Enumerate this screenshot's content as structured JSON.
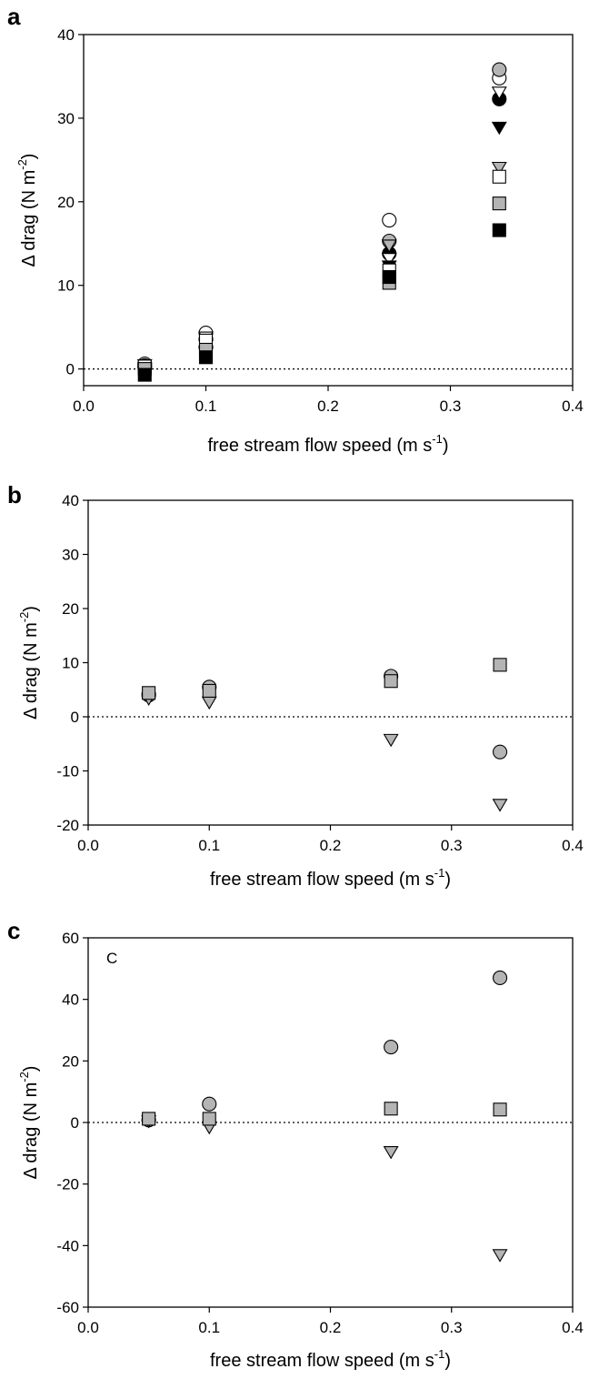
{
  "chart_data": [
    {
      "type": "scatter",
      "panel_label": "a",
      "inset_label": "",
      "xlabel": "free stream flow speed (m s",
      "xlabel_sup": "-1",
      "xlabel_end": ")",
      "ylabel": "Δ drag (N m",
      "ylabel_sup": "-2",
      "ylabel_end": ")",
      "xlim": [
        0,
        0.4
      ],
      "ylim": [
        -2,
        40
      ],
      "xticks": [
        0.0,
        0.1,
        0.2,
        0.3,
        0.4
      ],
      "xtick_labels": [
        "0.0",
        "0.1",
        "0.2",
        "0.3",
        "0.4"
      ],
      "yticks": [
        0,
        10,
        20,
        30,
        40
      ],
      "ytick_labels": [
        "0",
        "10",
        "20",
        "30",
        "40"
      ],
      "zero_line": "dotted",
      "grid": false,
      "series": [
        {
          "marker": "circle",
          "fill": "#ffffff",
          "x": [
            0.05,
            0.1,
            0.25,
            0.34
          ],
          "y": [
            0.6,
            4.3,
            17.8,
            34.8
          ]
        },
        {
          "marker": "circle",
          "fill": "#b4b4b4",
          "x": [
            0.05,
            0.1,
            0.25,
            0.34
          ],
          "y": [
            0.4,
            3.6,
            15.3,
            35.8
          ]
        },
        {
          "marker": "circle",
          "fill": "#000000",
          "x": [
            0.05,
            0.1,
            0.25,
            0.34
          ],
          "y": [
            0.2,
            2.6,
            13.8,
            32.3
          ]
        },
        {
          "marker": "triangle-down",
          "fill": "#ffffff",
          "x": [
            0.05,
            0.1,
            0.25,
            0.34
          ],
          "y": [
            0.5,
            3.8,
            13.2,
            33.1
          ]
        },
        {
          "marker": "triangle-down",
          "fill": "#b4b4b4",
          "x": [
            0.05,
            0.1,
            0.25,
            0.34
          ],
          "y": [
            0.1,
            2.8,
            14.8,
            24.1
          ]
        },
        {
          "marker": "triangle-down",
          "fill": "#000000",
          "x": [
            0.05,
            0.1,
            0.25,
            0.34
          ],
          "y": [
            -0.4,
            2.0,
            12.3,
            28.9
          ]
        },
        {
          "marker": "square",
          "fill": "#ffffff",
          "x": [
            0.05,
            0.1,
            0.25,
            0.34
          ],
          "y": [
            0.3,
            3.4,
            11.8,
            23.0
          ]
        },
        {
          "marker": "square",
          "fill": "#b4b4b4",
          "x": [
            0.05,
            0.1,
            0.25,
            0.34
          ],
          "y": [
            0.0,
            2.3,
            10.3,
            19.8
          ]
        },
        {
          "marker": "square",
          "fill": "#000000",
          "x": [
            0.05,
            0.1,
            0.25,
            0.34
          ],
          "y": [
            -0.7,
            1.4,
            11.0,
            16.6
          ]
        }
      ]
    },
    {
      "type": "scatter",
      "panel_label": "b",
      "inset_label": "",
      "xlabel": "free stream flow speed (m s",
      "xlabel_sup": "-1",
      "xlabel_end": ")",
      "ylabel": "Δ drag (N m",
      "ylabel_sup": "-2",
      "ylabel_end": ")",
      "xlim": [
        0,
        0.4
      ],
      "ylim": [
        -20,
        40
      ],
      "xticks": [
        0.0,
        0.1,
        0.2,
        0.3,
        0.4
      ],
      "xtick_labels": [
        "0.0",
        "0.1",
        "0.2",
        "0.3",
        "0.4"
      ],
      "yticks": [
        -20,
        -10,
        0,
        10,
        20,
        30,
        40
      ],
      "ytick_labels": [
        "-20",
        "-10",
        "0",
        "10",
        "20",
        "30",
        "40"
      ],
      "zero_line": "dotted",
      "grid": false,
      "series": [
        {
          "marker": "circle",
          "fill": "#b4b4b4",
          "x": [
            0.05,
            0.1,
            0.25,
            0.34
          ],
          "y": [
            4.0,
            5.5,
            7.5,
            -6.5
          ]
        },
        {
          "marker": "triangle-down",
          "fill": "#b4b4b4",
          "x": [
            0.05,
            0.1,
            0.25,
            0.34
          ],
          "y": [
            3.4,
            2.7,
            -4.2,
            -16.2
          ]
        },
        {
          "marker": "square",
          "fill": "#b4b4b4",
          "x": [
            0.05,
            0.1,
            0.25,
            0.34
          ],
          "y": [
            4.4,
            4.8,
            6.6,
            9.6
          ]
        }
      ]
    },
    {
      "type": "scatter",
      "panel_label": "c",
      "inset_label": "C",
      "xlabel": "free stream flow speed (m s",
      "xlabel_sup": "-1",
      "xlabel_end": ")",
      "ylabel": "Δ drag (N m",
      "ylabel_sup": "-2",
      "ylabel_end": ")",
      "xlim": [
        0,
        0.4
      ],
      "ylim": [
        -60,
        60
      ],
      "xticks": [
        0.0,
        0.1,
        0.2,
        0.3,
        0.4
      ],
      "xtick_labels": [
        "0.0",
        "0.1",
        "0.2",
        "0.3",
        "0.4"
      ],
      "yticks": [
        -60,
        -40,
        -20,
        0,
        20,
        40,
        60
      ],
      "ytick_labels": [
        "-60",
        "-40",
        "-20",
        "0",
        "20",
        "40",
        "60"
      ],
      "zero_line": "dotted",
      "grid": false,
      "series": [
        {
          "marker": "circle",
          "fill": "#b4b4b4",
          "x": [
            0.05,
            0.1,
            0.25,
            0.34
          ],
          "y": [
            0.8,
            6.0,
            24.5,
            47.0
          ]
        },
        {
          "marker": "triangle-down",
          "fill": "#b4b4b4",
          "x": [
            0.05,
            0.1,
            0.25,
            0.34
          ],
          "y": [
            0.5,
            -1.5,
            -9.5,
            -43.0
          ]
        },
        {
          "marker": "square",
          "fill": "#b4b4b4",
          "x": [
            0.05,
            0.1,
            0.25,
            0.34
          ],
          "y": [
            1.2,
            1.2,
            4.5,
            4.2
          ]
        }
      ]
    }
  ]
}
